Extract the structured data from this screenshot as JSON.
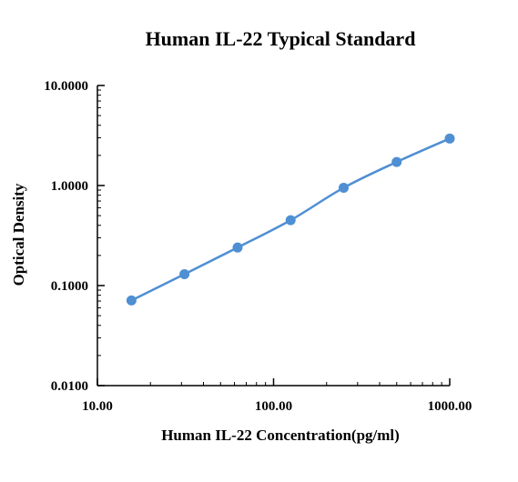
{
  "chart_data": {
    "type": "line",
    "title": "Human IL-22 Typical Standard",
    "xlabel": "Human IL-22  Concentration(pg/ml)",
    "ylabel": "Optical Density",
    "x_scale": "log",
    "y_scale": "log",
    "xlim": [
      10,
      1000
    ],
    "ylim": [
      0.01,
      10
    ],
    "x_ticks": [
      {
        "value": 10,
        "label": "10.00"
      },
      {
        "value": 100,
        "label": "100.00"
      },
      {
        "value": 1000,
        "label": "1000.00"
      }
    ],
    "y_ticks": [
      {
        "value": 0.01,
        "label": "0.0100"
      },
      {
        "value": 0.1,
        "label": "0.1000"
      },
      {
        "value": 1,
        "label": "1.0000"
      },
      {
        "value": 10,
        "label": "10.0000"
      }
    ],
    "grid": false,
    "legend": "none",
    "series": [
      {
        "color": "#4f8fd3",
        "points": [
          {
            "x": 15.6,
            "y": 0.071
          },
          {
            "x": 31.2,
            "y": 0.13
          },
          {
            "x": 62.5,
            "y": 0.24
          },
          {
            "x": 125,
            "y": 0.45
          },
          {
            "x": 250,
            "y": 0.95
          },
          {
            "x": 500,
            "y": 1.72
          },
          {
            "x": 1000,
            "y": 2.95
          }
        ]
      }
    ]
  }
}
